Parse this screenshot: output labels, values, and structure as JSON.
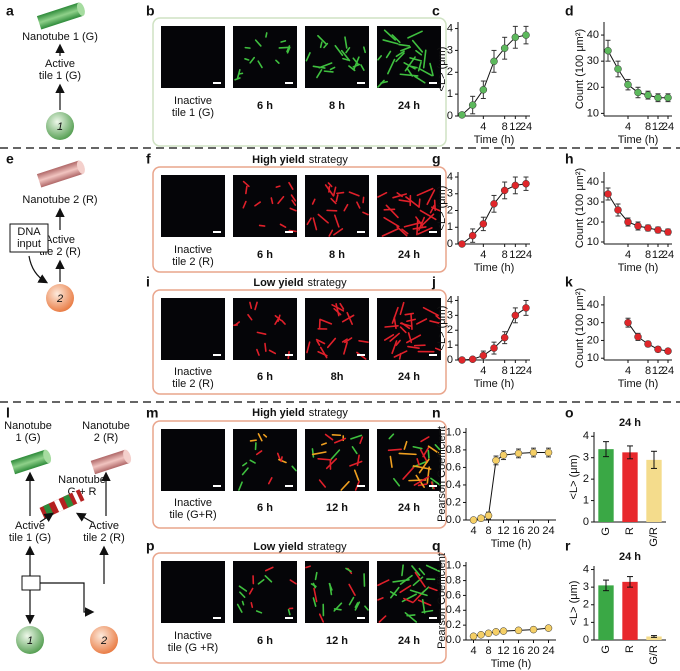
{
  "panels": [
    "a",
    "b",
    "c",
    "d",
    "e",
    "f",
    "g",
    "h",
    "i",
    "j",
    "k",
    "l",
    "m",
    "n",
    "o",
    "p",
    "q",
    "r"
  ],
  "diagram_a": {
    "nanotube": "Nanotube 1 (G)",
    "active": [
      "Active",
      "tile 1 (G)"
    ],
    "tile": "1"
  },
  "diagram_e": {
    "nanotube": "Nanotube 2 (R)",
    "active": [
      "Active",
      "tile 2 (R)"
    ],
    "input": [
      "DNA",
      "input"
    ],
    "tile": "2"
  },
  "diagram_l": {
    "nanotube_g": [
      "Nanotube",
      "1 (G)"
    ],
    "nanotube_r": [
      "Nanotube",
      "2 (R)"
    ],
    "nanotube_gr": [
      "Nanotube",
      "G + R"
    ],
    "active_g": [
      "Active",
      "tile 1 (G)"
    ],
    "active_r": [
      "Active",
      "tile 2 (R)"
    ],
    "tile_g": "1",
    "tile_r": "2"
  },
  "image_rows": [
    {
      "inactive": [
        "Inactive",
        "tile 1 (G)"
      ],
      "times": [
        "6 h",
        "8 h",
        "24 h"
      ]
    },
    {
      "heading": {
        "bold": "High yield",
        "rest": "strategy"
      },
      "inactive": [
        "Inactive",
        "tile 2 (R)"
      ],
      "times": [
        "6 h",
        "8 h",
        "24 h"
      ]
    },
    {
      "heading": {
        "bold": "Low yield",
        "rest": "strategy"
      },
      "inactive": [
        "Inactive",
        "tile 2 (R)"
      ],
      "times": [
        "6 h",
        "8h",
        "24 h"
      ]
    },
    {
      "heading": {
        "bold": "High yield",
        "rest": "strategy"
      },
      "inactive": [
        "Inactive",
        "tile (G+R)"
      ],
      "times": [
        "6 h",
        "12 h",
        "24 h"
      ]
    },
    {
      "heading": {
        "bold": "Low yield",
        "rest": "strategy"
      },
      "inactive": [
        "Inactive",
        "tile (G +R)"
      ],
      "times": [
        "6 h",
        "12 h",
        "24 h"
      ]
    }
  ],
  "chart_data": [
    {
      "type": "line",
      "categories": [
        null,
        null,
        "4",
        null,
        "8",
        "12",
        "24"
      ],
      "values": [
        0.05,
        0.5,
        1.2,
        2.5,
        3.1,
        3.6,
        3.7
      ],
      "errors": [
        0.1,
        0.4,
        0.4,
        0.5,
        0.5,
        0.5,
        0.4
      ],
      "color": "#5cb85c",
      "ylim": [
        0,
        4.3
      ],
      "yticks": [
        0,
        1,
        2,
        3,
        4
      ],
      "y_label": "<L> (μm)",
      "x_label": "Time (h)"
    },
    {
      "type": "line",
      "categories": [
        null,
        null,
        "4",
        null,
        "8",
        "12",
        "24"
      ],
      "values": [
        34,
        27,
        21,
        18,
        17,
        16,
        16
      ],
      "errors": [
        4,
        3,
        2,
        2,
        1.5,
        1.5,
        1.5
      ],
      "color": "#5cb85c",
      "ylim": [
        9,
        45
      ],
      "yticks": [
        10,
        20,
        30,
        40
      ],
      "y_label": "Count (100 μm²)",
      "x_label": "Time (h)"
    },
    {
      "type": "line",
      "categories": [
        null,
        null,
        "4",
        null,
        "8",
        "12",
        "24"
      ],
      "values": [
        0,
        0.5,
        1.2,
        2.4,
        3.2,
        3.5,
        3.6
      ],
      "errors": [
        0.1,
        0.4,
        0.4,
        0.5,
        0.5,
        0.5,
        0.4
      ],
      "color": "#e0262a",
      "ylim": [
        0,
        4.3
      ],
      "yticks": [
        0,
        1,
        2,
        3,
        4
      ],
      "y_label": "<L> (μm)",
      "x_label": "Time (h)"
    },
    {
      "type": "line",
      "categories": [
        null,
        null,
        "4",
        null,
        "8",
        "12",
        "24"
      ],
      "values": [
        34,
        26,
        20,
        18,
        17,
        16,
        15
      ],
      "errors": [
        3,
        3,
        2,
        2,
        1.5,
        1.5,
        1.5
      ],
      "color": "#e0262a",
      "ylim": [
        9,
        45
      ],
      "yticks": [
        10,
        20,
        30,
        40
      ],
      "y_label": "Count (100 μm²)",
      "x_label": "Time (h)"
    },
    {
      "type": "line",
      "categories": [
        null,
        null,
        "4",
        null,
        "8",
        "12",
        "24"
      ],
      "values": [
        0,
        0.05,
        0.3,
        0.8,
        1.5,
        3.0,
        3.5
      ],
      "errors": [
        0.05,
        0.1,
        0.3,
        0.4,
        0.4,
        0.5,
        0.5
      ],
      "color": "#e0262a",
      "ylim": [
        0,
        4.3
      ],
      "yticks": [
        0,
        1,
        2,
        3,
        4
      ],
      "y_label": "<L> (μm)",
      "x_label": "Time (h)"
    },
    {
      "type": "line",
      "categories": [
        null,
        null,
        "4",
        null,
        "8",
        "12",
        "24"
      ],
      "values": [
        null,
        null,
        30,
        22,
        18,
        15,
        14
      ],
      "errors": [
        null,
        null,
        2.5,
        2,
        1.5,
        1.5,
        1
      ],
      "color": "#e0262a",
      "ylim": [
        9,
        45
      ],
      "yticks": [
        10,
        20,
        30,
        40
      ],
      "y_label": "Count (100 μm²)",
      "x_label": "Time (h)"
    },
    {
      "type": "line",
      "x": [
        4,
        6,
        8,
        10,
        12,
        16,
        20,
        24
      ],
      "xlim": [
        2,
        26
      ],
      "xticks": [
        4,
        8,
        12,
        16,
        20,
        24
      ],
      "values": [
        0.0,
        0.02,
        0.05,
        0.68,
        0.74,
        0.76,
        0.77,
        0.77
      ],
      "errors": [
        0.02,
        0.03,
        0.04,
        0.05,
        0.05,
        0.05,
        0.05,
        0.05
      ],
      "color": "#f5cf66",
      "ylim": [
        0,
        1.05
      ],
      "yticks": [
        {
          "value": 0,
          "label": "0.0"
        },
        0.2,
        0.4,
        0.6,
        0.8,
        {
          "value": 1,
          "label": "1.0"
        }
      ],
      "y_label": "Pearson Coefficient",
      "x_label": "Time (h)"
    },
    {
      "type": "bar",
      "title": "24 h",
      "categories": [
        "G",
        "R",
        "G/R"
      ],
      "values": [
        3.4,
        3.25,
        2.9
      ],
      "errors": [
        0.35,
        0.3,
        0.4
      ],
      "colors": [
        "#3aa845",
        "#e8282c",
        "#f4dc8c"
      ],
      "ylim": [
        0,
        4.2
      ],
      "yticks": [
        0,
        1,
        2,
        3,
        4
      ],
      "y_label": "<L> (μm)"
    },
    {
      "type": "line",
      "x": [
        4,
        6,
        8,
        10,
        12,
        16,
        20,
        24
      ],
      "xlim": [
        2,
        26
      ],
      "xticks": [
        4,
        8,
        12,
        16,
        20,
        24
      ],
      "values": [
        0.05,
        0.07,
        0.09,
        0.11,
        0.12,
        0.13,
        0.14,
        0.16
      ],
      "errors": [
        0.03,
        0.03,
        0.03,
        0.03,
        0.03,
        0.03,
        0.03,
        0.03
      ],
      "color": "#f5cf66",
      "ylim": [
        0,
        1.05
      ],
      "yticks": [
        {
          "value": 0,
          "label": "0.0"
        },
        0.2,
        0.4,
        0.6,
        0.8,
        {
          "value": 1,
          "label": "1.0"
        }
      ],
      "y_label": "Pearson Coefficient",
      "x_label": "Time (h)"
    },
    {
      "type": "bar",
      "title": "24 h",
      "categories": [
        "G",
        "R",
        "G/R"
      ],
      "values": [
        3.1,
        3.3,
        0.2
      ],
      "errors": [
        0.3,
        0.3,
        0.05
      ],
      "colors": [
        "#3aa845",
        "#e8282c",
        "#f4dc8c"
      ],
      "ylim": [
        0,
        4.2
      ],
      "yticks": [
        0,
        1,
        2,
        3,
        4
      ],
      "y_label": "<L> (μm)"
    }
  ]
}
